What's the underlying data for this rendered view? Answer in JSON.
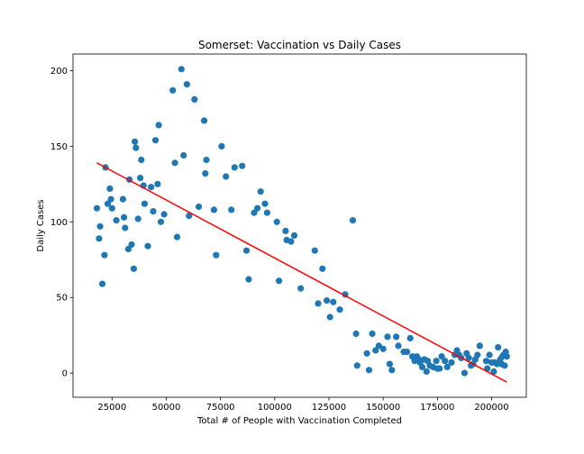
{
  "chart_data": {
    "type": "scatter",
    "title": "Somerset: Vaccination vs Daily Cases",
    "xlabel": "Total # of People with Vaccination Completed",
    "ylabel": "Daily Cases",
    "xlim": [
      7000,
      216000
    ],
    "ylim": [
      -16,
      211
    ],
    "xticks": [
      25000,
      50000,
      75000,
      100000,
      125000,
      150000,
      175000,
      200000
    ],
    "xtick_labels": [
      "25000",
      "50000",
      "75000",
      "100000",
      "125000",
      "150000",
      "175000",
      "200000"
    ],
    "yticks": [
      0,
      50,
      100,
      150,
      200
    ],
    "ytick_labels": [
      "0",
      "50",
      "100",
      "150",
      "200"
    ],
    "grid": false,
    "colors": {
      "points": "#1f77b4",
      "trendline": "#ff0000"
    },
    "trendline": {
      "x": [
        18000,
        207000
      ],
      "y": [
        139,
        -6
      ]
    },
    "points": [
      {
        "x": 18000,
        "y": 109
      },
      {
        "x": 19000,
        "y": 89
      },
      {
        "x": 19500,
        "y": 97
      },
      {
        "x": 20500,
        "y": 59
      },
      {
        "x": 21500,
        "y": 78
      },
      {
        "x": 22000,
        "y": 136
      },
      {
        "x": 23000,
        "y": 112
      },
      {
        "x": 24000,
        "y": 122
      },
      {
        "x": 24500,
        "y": 115
      },
      {
        "x": 25000,
        "y": 109
      },
      {
        "x": 27000,
        "y": 101
      },
      {
        "x": 30000,
        "y": 115
      },
      {
        "x": 30500,
        "y": 103
      },
      {
        "x": 31000,
        "y": 96
      },
      {
        "x": 32500,
        "y": 82
      },
      {
        "x": 33000,
        "y": 128
      },
      {
        "x": 34000,
        "y": 85
      },
      {
        "x": 35000,
        "y": 69
      },
      {
        "x": 35500,
        "y": 153
      },
      {
        "x": 36000,
        "y": 149
      },
      {
        "x": 37000,
        "y": 102
      },
      {
        "x": 38000,
        "y": 129
      },
      {
        "x": 38500,
        "y": 141
      },
      {
        "x": 39500,
        "y": 124
      },
      {
        "x": 40000,
        "y": 112
      },
      {
        "x": 41500,
        "y": 84
      },
      {
        "x": 43000,
        "y": 123
      },
      {
        "x": 44000,
        "y": 107
      },
      {
        "x": 45000,
        "y": 154
      },
      {
        "x": 46000,
        "y": 125
      },
      {
        "x": 46500,
        "y": 164
      },
      {
        "x": 47500,
        "y": 100
      },
      {
        "x": 49000,
        "y": 105
      },
      {
        "x": 53000,
        "y": 187
      },
      {
        "x": 54000,
        "y": 139
      },
      {
        "x": 55000,
        "y": 90
      },
      {
        "x": 57000,
        "y": 201
      },
      {
        "x": 58000,
        "y": 144
      },
      {
        "x": 59500,
        "y": 191
      },
      {
        "x": 60500,
        "y": 104
      },
      {
        "x": 63000,
        "y": 181
      },
      {
        "x": 65000,
        "y": 110
      },
      {
        "x": 67500,
        "y": 167
      },
      {
        "x": 68000,
        "y": 132
      },
      {
        "x": 68500,
        "y": 141
      },
      {
        "x": 72000,
        "y": 108
      },
      {
        "x": 73000,
        "y": 78
      },
      {
        "x": 75500,
        "y": 150
      },
      {
        "x": 77500,
        "y": 130
      },
      {
        "x": 80000,
        "y": 108
      },
      {
        "x": 81500,
        "y": 136
      },
      {
        "x": 85000,
        "y": 137
      },
      {
        "x": 87000,
        "y": 81
      },
      {
        "x": 88000,
        "y": 62
      },
      {
        "x": 90500,
        "y": 106
      },
      {
        "x": 92000,
        "y": 109
      },
      {
        "x": 93500,
        "y": 120
      },
      {
        "x": 95500,
        "y": 112
      },
      {
        "x": 96500,
        "y": 106
      },
      {
        "x": 101000,
        "y": 100
      },
      {
        "x": 102000,
        "y": 61
      },
      {
        "x": 105000,
        "y": 94
      },
      {
        "x": 105500,
        "y": 88
      },
      {
        "x": 107500,
        "y": 87
      },
      {
        "x": 109000,
        "y": 91
      },
      {
        "x": 112000,
        "y": 56
      },
      {
        "x": 118500,
        "y": 81
      },
      {
        "x": 120000,
        "y": 46
      },
      {
        "x": 122000,
        "y": 69
      },
      {
        "x": 124000,
        "y": 48
      },
      {
        "x": 125500,
        "y": 37
      },
      {
        "x": 127000,
        "y": 47
      },
      {
        "x": 130000,
        "y": 42
      },
      {
        "x": 132500,
        "y": 52
      },
      {
        "x": 136000,
        "y": 101
      },
      {
        "x": 137500,
        "y": 26
      },
      {
        "x": 138000,
        "y": 5
      },
      {
        "x": 142500,
        "y": 13
      },
      {
        "x": 143500,
        "y": 2
      },
      {
        "x": 145000,
        "y": 26
      },
      {
        "x": 146500,
        "y": 15
      },
      {
        "x": 148000,
        "y": 18
      },
      {
        "x": 150000,
        "y": 16
      },
      {
        "x": 152000,
        "y": 24
      },
      {
        "x": 153000,
        "y": 6
      },
      {
        "x": 154000,
        "y": 2
      },
      {
        "x": 156000,
        "y": 24
      },
      {
        "x": 157000,
        "y": 18
      },
      {
        "x": 159500,
        "y": 14
      },
      {
        "x": 161000,
        "y": 14
      },
      {
        "x": 162500,
        "y": 23
      },
      {
        "x": 163500,
        "y": 11
      },
      {
        "x": 164500,
        "y": 8
      },
      {
        "x": 165500,
        "y": 11
      },
      {
        "x": 166500,
        "y": 9
      },
      {
        "x": 167000,
        "y": 7
      },
      {
        "x": 168000,
        "y": 4
      },
      {
        "x": 169000,
        "y": 9
      },
      {
        "x": 170000,
        "y": 1
      },
      {
        "x": 170500,
        "y": 8
      },
      {
        "x": 171500,
        "y": 5
      },
      {
        "x": 173000,
        "y": 4
      },
      {
        "x": 174500,
        "y": 8
      },
      {
        "x": 175000,
        "y": 3
      },
      {
        "x": 176000,
        "y": 3
      },
      {
        "x": 177000,
        "y": 11
      },
      {
        "x": 178500,
        "y": 8
      },
      {
        "x": 179500,
        "y": 4
      },
      {
        "x": 181500,
        "y": 7
      },
      {
        "x": 183000,
        "y": 12
      },
      {
        "x": 184000,
        "y": 15
      },
      {
        "x": 185000,
        "y": 12
      },
      {
        "x": 186000,
        "y": 10
      },
      {
        "x": 187500,
        "y": 0
      },
      {
        "x": 188500,
        "y": 13
      },
      {
        "x": 189500,
        "y": 10
      },
      {
        "x": 190500,
        "y": 5
      },
      {
        "x": 191500,
        "y": 6
      },
      {
        "x": 192500,
        "y": 9
      },
      {
        "x": 193500,
        "y": 12
      },
      {
        "x": 194500,
        "y": 18
      },
      {
        "x": 197500,
        "y": 8
      },
      {
        "x": 198000,
        "y": 3
      },
      {
        "x": 199000,
        "y": 12
      },
      {
        "x": 200000,
        "y": 7
      },
      {
        "x": 201000,
        "y": 1
      },
      {
        "x": 201500,
        "y": 7
      },
      {
        "x": 202500,
        "y": 6
      },
      {
        "x": 203000,
        "y": 17
      },
      {
        "x": 204000,
        "y": 9
      },
      {
        "x": 204500,
        "y": 6
      },
      {
        "x": 205000,
        "y": 11
      },
      {
        "x": 205500,
        "y": 12
      },
      {
        "x": 206000,
        "y": 5
      },
      {
        "x": 206500,
        "y": 14
      },
      {
        "x": 207000,
        "y": 11
      }
    ]
  }
}
